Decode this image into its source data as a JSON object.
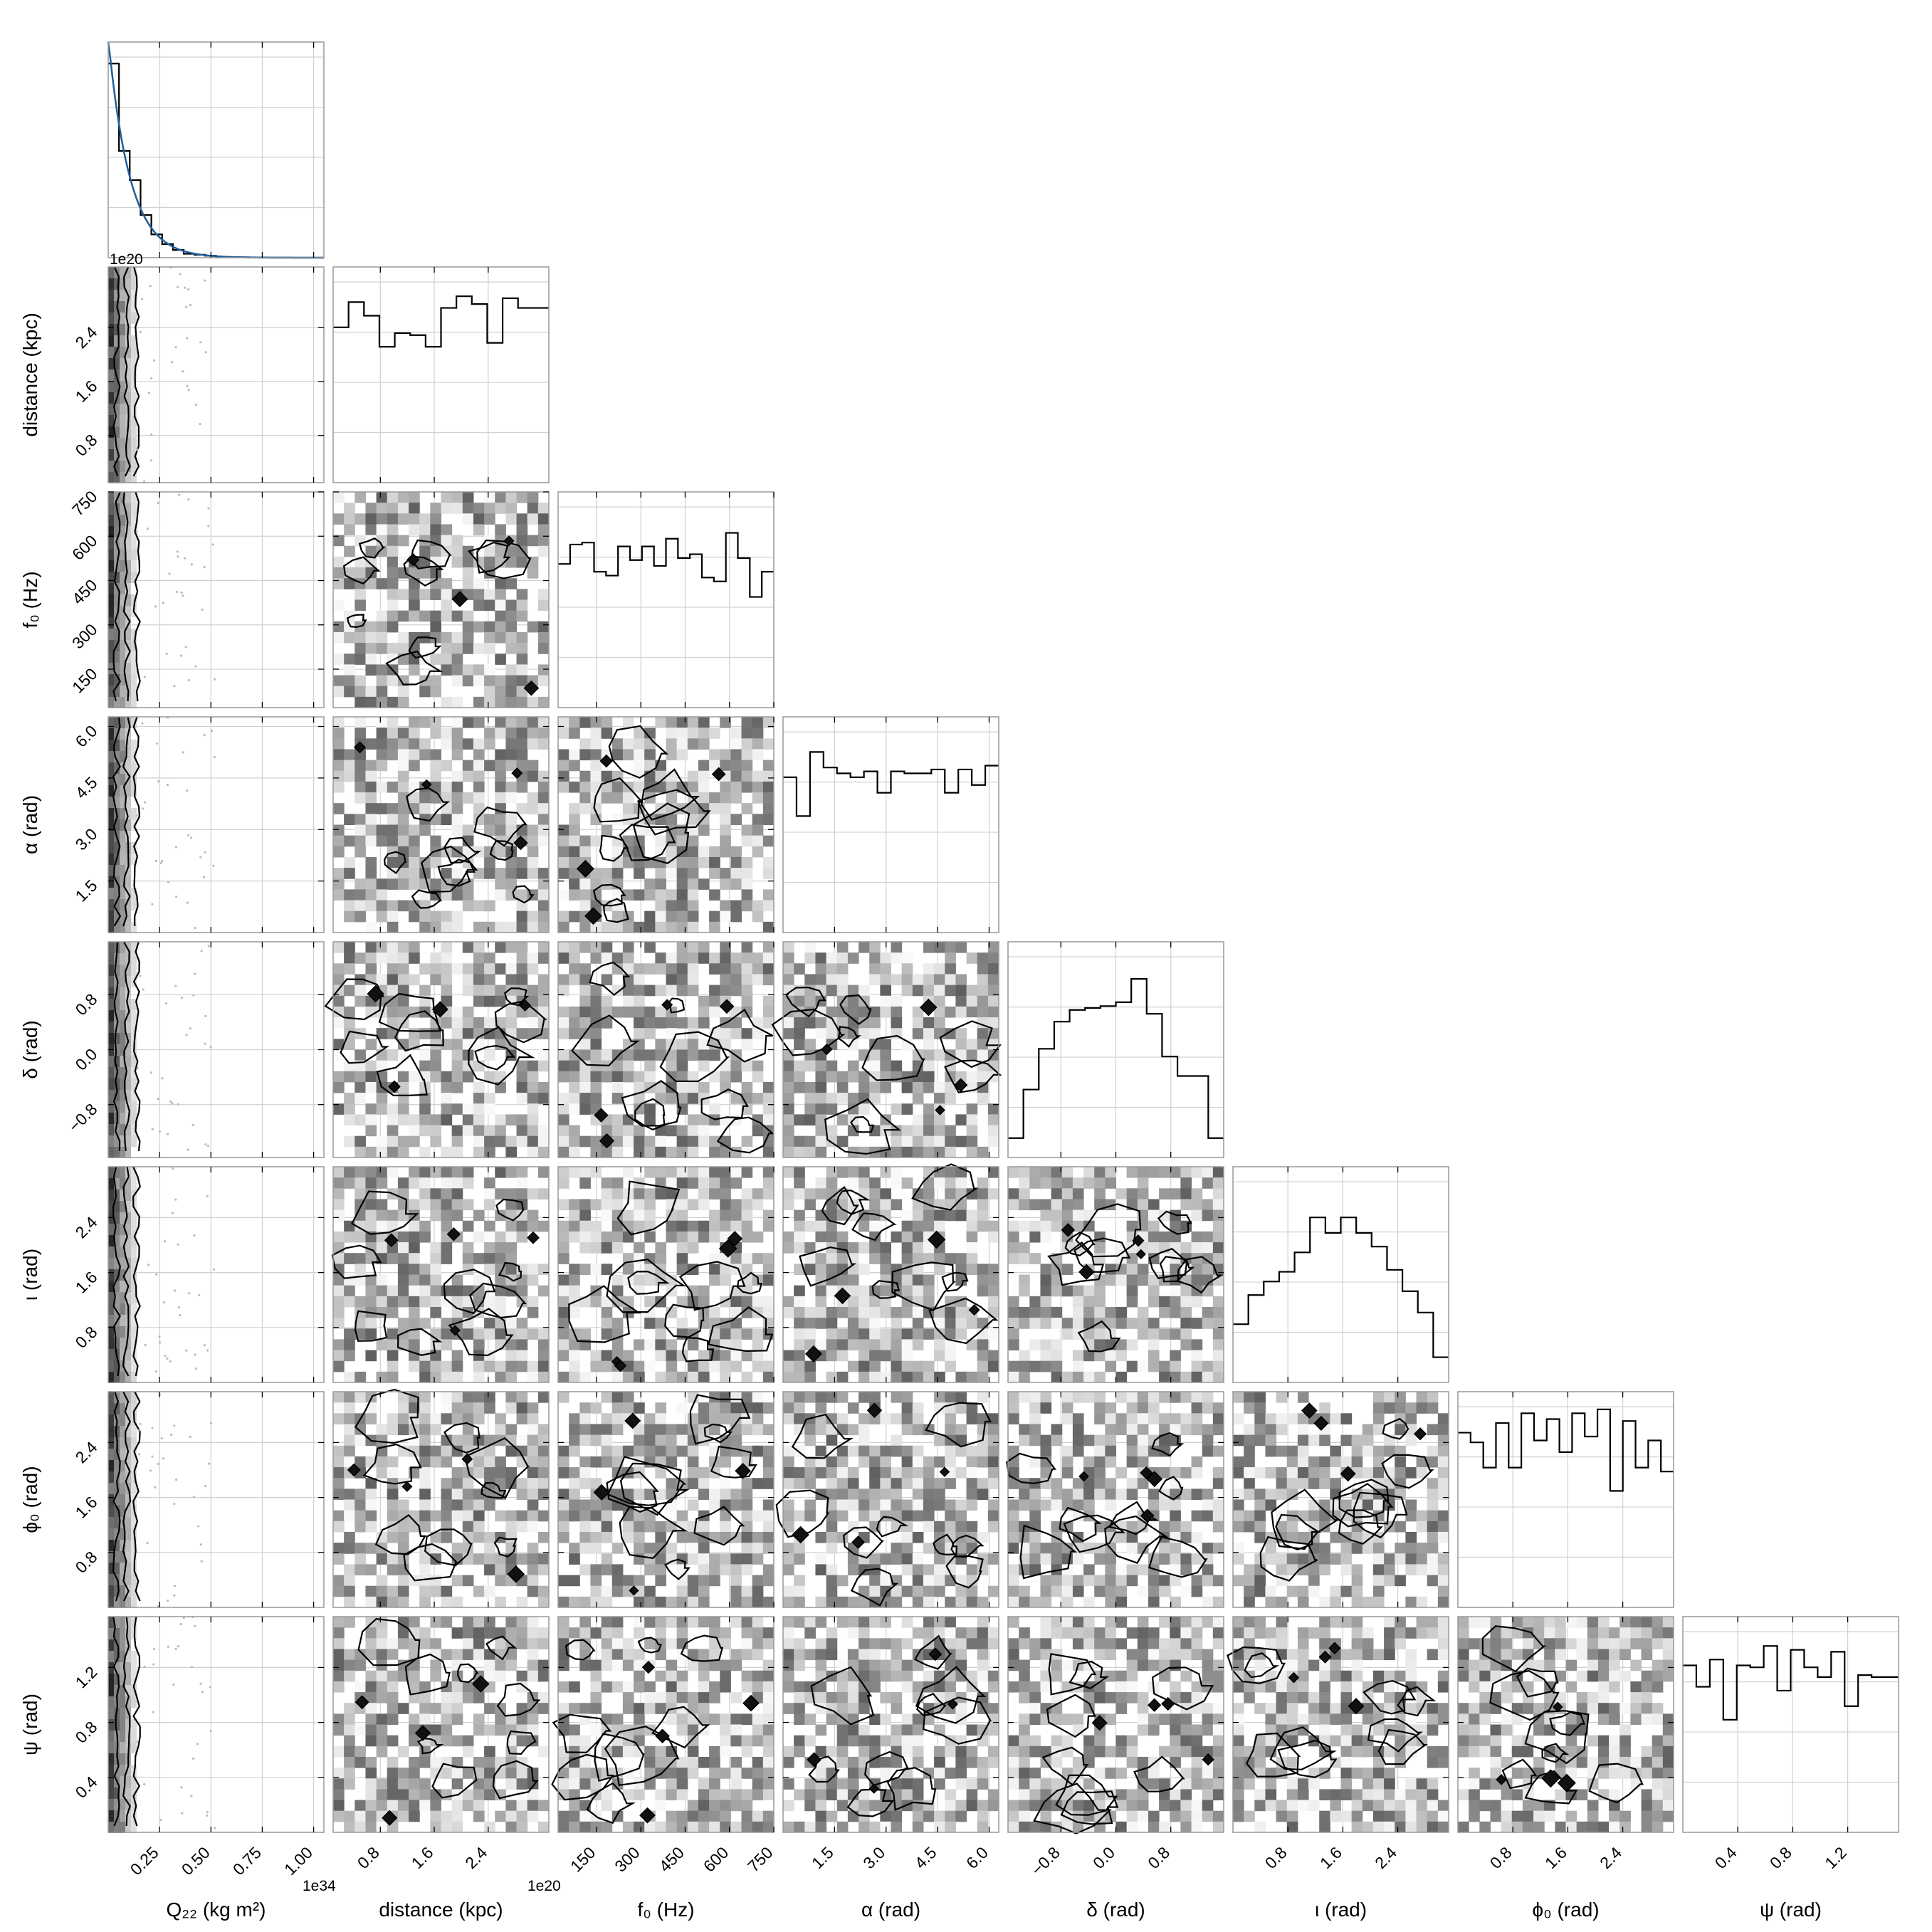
{
  "chart_data": {
    "type": "corner",
    "params": [
      {
        "key": "q22",
        "label": "Q₂₂ (kg m²)",
        "offset_text": "1e34",
        "range": [
          0.0,
          1.05
        ],
        "ticks": [
          0.25,
          0.5,
          0.75,
          1.0
        ],
        "tick_labels": [
          "0.25",
          "0.50",
          "0.75",
          "1.00"
        ]
      },
      {
        "key": "distance",
        "label": "distance (kpc)",
        "offset_text": "1e20",
        "range": [
          0.1,
          3.3
        ],
        "ticks": [
          0.8,
          1.6,
          2.4
        ],
        "tick_labels": [
          "0.8",
          "1.6",
          "2.4"
        ]
      },
      {
        "key": "f0",
        "label": "f₀ (Hz)",
        "offset_text": "",
        "range": [
          20,
          750
        ],
        "ticks": [
          150,
          300,
          450,
          600,
          750
        ],
        "tick_labels": [
          "150",
          "300",
          "450",
          "600",
          "750"
        ]
      },
      {
        "key": "alpha",
        "label": "α (rad)",
        "offset_text": "",
        "range": [
          0.0,
          6.28
        ],
        "ticks": [
          1.5,
          3.0,
          4.5,
          6.0
        ],
        "tick_labels": [
          "1.5",
          "3.0",
          "4.5",
          "6.0"
        ]
      },
      {
        "key": "delta",
        "label": "δ (rad)",
        "offset_text": "",
        "range": [
          -1.57,
          1.57
        ],
        "ticks": [
          -0.8,
          0.0,
          0.8
        ],
        "tick_labels": [
          "−0.8",
          "0.0",
          "0.8"
        ]
      },
      {
        "key": "iota",
        "label": "ι (rad)",
        "offset_text": "",
        "range": [
          0.0,
          3.14
        ],
        "ticks": [
          0.8,
          1.6,
          2.4
        ],
        "tick_labels": [
          "0.8",
          "1.6",
          "2.4"
        ]
      },
      {
        "key": "phi0",
        "label": "ϕ₀ (rad)",
        "offset_text": "",
        "range": [
          0.0,
          3.14
        ],
        "ticks": [
          0.8,
          1.6,
          2.4
        ],
        "tick_labels": [
          "0.8",
          "1.6",
          "2.4"
        ]
      },
      {
        "key": "psi",
        "label": "ψ (rad)",
        "offset_text": "",
        "range": [
          0.0,
          1.57
        ],
        "ticks": [
          0.4,
          0.8,
          1.2
        ],
        "tick_labels": [
          "0.4",
          "0.8",
          "1.2"
        ]
      }
    ],
    "histograms_1d": [
      [
        1.0,
        0.55,
        0.4,
        0.22,
        0.12,
        0.07,
        0.04,
        0.02,
        0.015,
        0.01,
        0.005,
        0.003,
        0.002,
        0.001,
        0.0,
        0.0,
        0.0,
        0.0,
        0.0,
        0.0
      ],
      [
        0.8,
        0.93,
        0.86,
        0.7,
        0.77,
        0.76,
        0.7,
        0.9,
        0.96,
        0.92,
        0.72,
        0.95,
        0.9,
        0.9
      ],
      [
        0.74,
        0.84,
        0.85,
        0.7,
        0.68,
        0.83,
        0.76,
        0.83,
        0.73,
        0.87,
        0.77,
        0.79,
        0.67,
        0.65,
        0.9,
        0.77,
        0.57,
        0.7
      ],
      [
        0.8,
        0.6,
        0.93,
        0.85,
        0.82,
        0.8,
        0.83,
        0.72,
        0.83,
        0.82,
        0.82,
        0.84,
        0.72,
        0.84,
        0.76,
        0.86
      ],
      [
        0.1,
        0.35,
        0.56,
        0.7,
        0.76,
        0.77,
        0.78,
        0.8,
        0.92,
        0.74,
        0.52,
        0.42,
        0.42,
        0.1
      ],
      [
        0.3,
        0.45,
        0.52,
        0.57,
        0.67,
        0.85,
        0.77,
        0.85,
        0.77,
        0.7,
        0.58,
        0.47,
        0.36,
        0.13
      ],
      [
        0.9,
        0.85,
        0.72,
        0.95,
        0.72,
        1.0,
        0.86,
        0.97,
        0.8,
        1.0,
        0.88,
        1.02,
        0.6,
        0.96,
        0.72,
        0.86,
        0.7
      ],
      [
        0.86,
        0.75,
        0.89,
        0.58,
        0.86,
        0.85,
        0.96,
        0.73,
        0.94,
        0.85,
        0.8,
        0.93,
        0.65,
        0.81,
        0.8,
        0.8
      ]
    ],
    "q22_fit_curve": "exponential decay"
  }
}
